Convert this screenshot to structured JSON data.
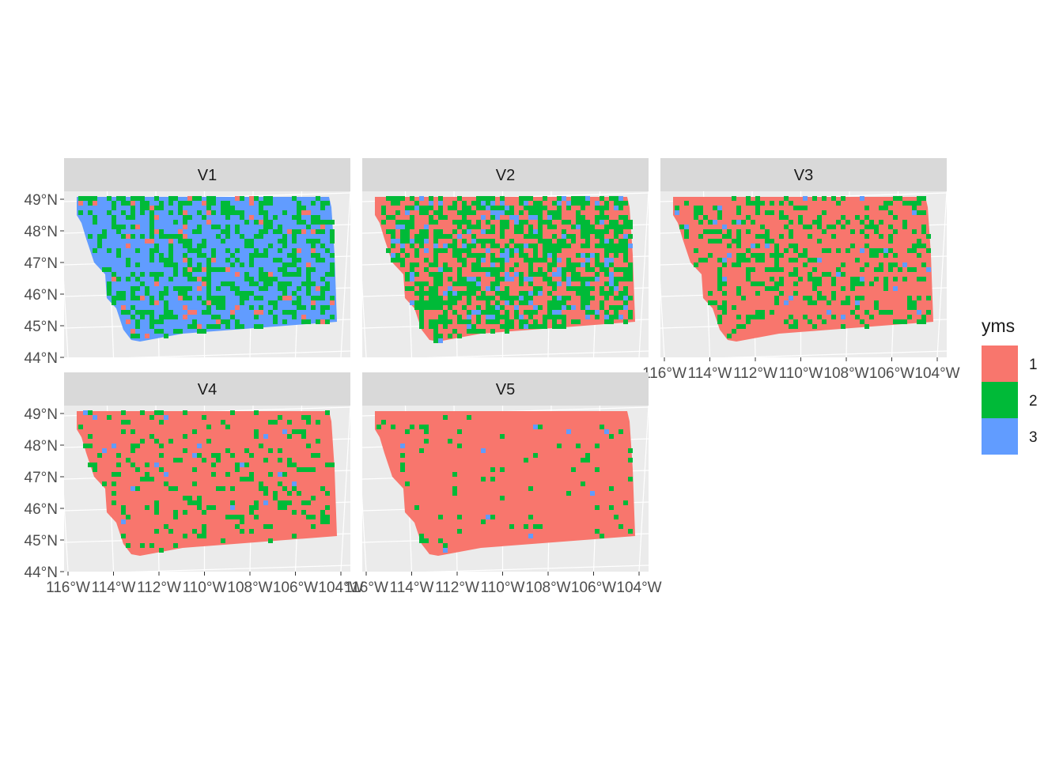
{
  "legend": {
    "title": "yms",
    "entries": [
      {
        "label": "1",
        "color": "#F8766D"
      },
      {
        "label": "2",
        "color": "#00BA38"
      },
      {
        "label": "3",
        "color": "#619CFF"
      }
    ]
  },
  "lat_ticks": [
    "44°N",
    "45°N",
    "46°N",
    "47°N",
    "48°N",
    "49°N"
  ],
  "lon_ticks": [
    "116°W",
    "114°W",
    "112°W",
    "110°W",
    "108°W",
    "106°W",
    "104°W"
  ],
  "colors": {
    "panel_bg": "#EBEBEB",
    "strip_bg": "#D9D9D9",
    "grid": "#FFFFFF",
    "axis_text": "#4D4D4D"
  },
  "panels": [
    {
      "title": "V1",
      "mix": [
        0.05,
        0.35,
        0.6
      ],
      "seed": 11
    },
    {
      "title": "V2",
      "mix": [
        0.45,
        0.45,
        0.1
      ],
      "seed": 23
    },
    {
      "title": "V3",
      "mix": [
        0.72,
        0.26,
        0.02
      ],
      "seed": 37
    },
    {
      "title": "V4",
      "mix": [
        0.86,
        0.13,
        0.01
      ],
      "seed": 41
    },
    {
      "title": "V5",
      "mix": [
        0.93,
        0.065,
        0.005
      ],
      "seed": 53
    }
  ]
}
